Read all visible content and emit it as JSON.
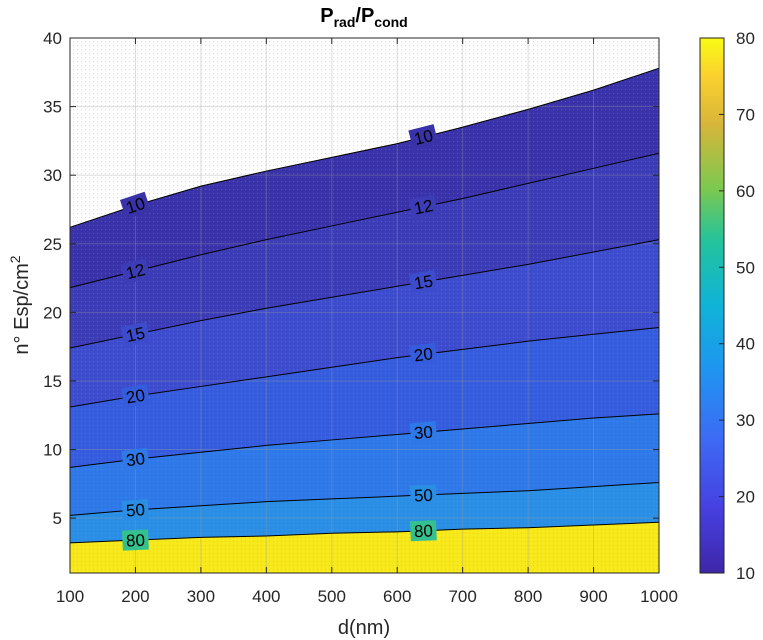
{
  "chart_data": {
    "type": "contour",
    "title": {
      "main": "P",
      "sub1": "rad",
      "sep": "/P",
      "sub2": "cond"
    },
    "xlabel": "d(nm)",
    "ylabel": {
      "main": "n° Esp/cm",
      "sup": "2"
    },
    "xlim": [
      100,
      1000
    ],
    "ylim": [
      1,
      40
    ],
    "xticks": [
      "100",
      "200",
      "300",
      "400",
      "500",
      "600",
      "700",
      "800",
      "900",
      "1000"
    ],
    "yticks": [
      "5",
      "10",
      "15",
      "20",
      "25",
      "30",
      "35",
      "40"
    ],
    "colorbar": {
      "range": [
        10,
        80
      ],
      "ticks": [
        "10",
        "20",
        "30",
        "40",
        "50",
        "60",
        "70",
        "80"
      ]
    },
    "x": [
      100,
      200,
      300,
      400,
      500,
      600,
      700,
      800,
      900,
      1000
    ],
    "levels": [
      {
        "level": 10,
        "label": "10",
        "label_x": 640,
        "y": [
          26.2,
          27.8,
          29.2,
          30.3,
          31.3,
          32.3,
          33.5,
          34.8,
          36.2,
          37.8
        ],
        "fill": "#3a32a8"
      },
      {
        "level": 12,
        "label": "12",
        "label_x": 640,
        "y": [
          21.8,
          23.0,
          24.2,
          25.3,
          26.3,
          27.3,
          28.3,
          29.4,
          30.5,
          31.6
        ],
        "fill": "#3c3db6"
      },
      {
        "level": 15,
        "label": "15",
        "label_x": 640,
        "y": [
          17.4,
          18.4,
          19.4,
          20.3,
          21.1,
          21.9,
          22.7,
          23.5,
          24.4,
          25.3
        ],
        "fill": "#3d4ccc"
      },
      {
        "level": 20,
        "label": "20",
        "label_x": 640,
        "y": [
          13.1,
          13.9,
          14.6,
          15.3,
          16.0,
          16.7,
          17.3,
          17.9,
          18.4,
          18.9
        ],
        "fill": "#355cdc"
      },
      {
        "level": 30,
        "label": "30",
        "label_x": 640,
        "y": [
          8.7,
          9.3,
          9.8,
          10.3,
          10.7,
          11.1,
          11.5,
          11.9,
          12.3,
          12.6
        ],
        "fill": "#2e78e8"
      },
      {
        "level": 50,
        "label": "50",
        "label_x": 640,
        "y": [
          5.2,
          5.6,
          5.9,
          6.2,
          6.4,
          6.6,
          6.8,
          7.0,
          7.3,
          7.6
        ],
        "fill": "#2a8fe4"
      },
      {
        "level": 80,
        "label": "80",
        "label_x": 640,
        "y": [
          3.2,
          3.4,
          3.6,
          3.7,
          3.9,
          4.0,
          4.2,
          4.3,
          4.5,
          4.7
        ],
        "fill": "#35c08f"
      }
    ],
    "label_x_left": 200,
    "top_fill": "#ffffff",
    "bottom_fill": "#f7e91c",
    "grid": true
  }
}
